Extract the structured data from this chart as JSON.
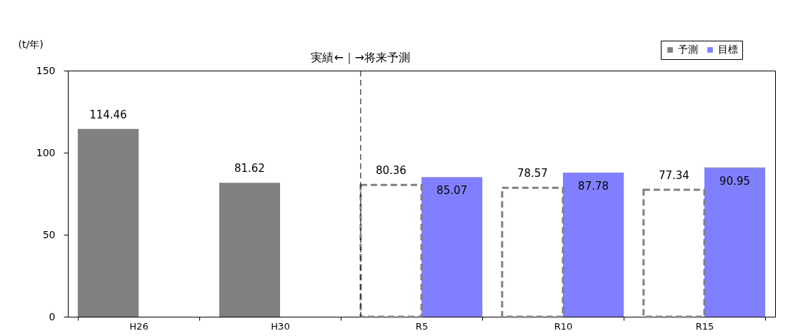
{
  "chart_data": {
    "type": "bar",
    "ylabel": "(t/年)",
    "categories": [
      "H26",
      "H30",
      "R5",
      "R10",
      "R15"
    ],
    "series": [
      {
        "color": "#808080",
        "values": [
          114.46,
          81.62,
          null,
          null,
          null
        ]
      },
      {
        "name": "予測",
        "color": "#808080",
        "line_style": "dashed",
        "values": [
          null,
          null,
          80.36,
          78.57,
          77.34
        ]
      },
      {
        "name": "目標",
        "color": "#8080ff",
        "values": [
          null,
          null,
          85.07,
          87.78,
          90.95
        ]
      }
    ],
    "ylim": [
      0,
      150
    ],
    "yticks": [
      0,
      50,
      100,
      150
    ],
    "grid": false,
    "legend": "top right",
    "data_labels": true,
    "ref_lines": [
      {
        "axis": "x",
        "value": "R5",
        "line_style": "dashed",
        "label": "実績←｜→将来予測"
      }
    ]
  }
}
